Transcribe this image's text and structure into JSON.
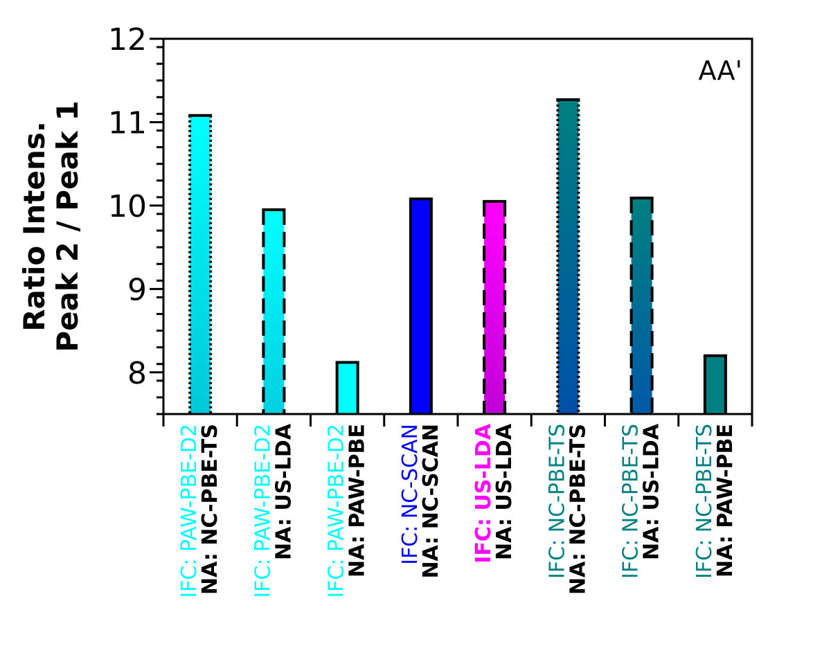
{
  "chart_data": {
    "type": "bar",
    "ylabel_line1": "Ratio Intens.",
    "ylabel_line2": "Peak 2 / Peak 1",
    "annotation": "AA'",
    "ylim": [
      7.5,
      12
    ],
    "yticks": [
      8,
      9,
      10,
      11,
      12
    ],
    "yticks_labels": [
      "8",
      "9",
      "10",
      "11",
      "12"
    ],
    "grid": false,
    "categories": [
      {
        "ifc": "IFC: PAW-PBE-D2",
        "ifc_prefix": "IFC: ",
        "ifc_name": "PAW-PBE-D2",
        "ifc_bold": false,
        "na": "NA: NC-PBE-TS",
        "value": 11.08,
        "ifc_color": "#00ffff",
        "fill_top": "#00ffff",
        "fill_bottom": "#00c8d8",
        "outline": "dotted"
      },
      {
        "ifc": "IFC: PAW-PBE-D2",
        "ifc_prefix": "IFC: ",
        "ifc_name": "PAW-PBE-D2",
        "ifc_bold": false,
        "na": "NA: US-LDA",
        "value": 9.95,
        "ifc_color": "#00ffff",
        "fill_top": "#00ffff",
        "fill_bottom": "#00d0e0",
        "outline": "dashed"
      },
      {
        "ifc": "IFC: PAW-PBE-D2",
        "ifc_prefix": "IFC: ",
        "ifc_name": "PAW-PBE-D2",
        "ifc_bold": false,
        "na": "NA: PAW-PBE",
        "value": 8.12,
        "ifc_color": "#00ffff",
        "fill_top": "#00ffff",
        "fill_bottom": "#00ffff",
        "outline": "solid"
      },
      {
        "ifc": "IFC: NC-SCAN",
        "ifc_prefix": "IFC: ",
        "ifc_name": "NC-SCAN",
        "ifc_bold": false,
        "na": "NA: NC-SCAN",
        "value": 10.08,
        "ifc_color": "#0000ff",
        "fill_top": "#0000ff",
        "fill_bottom": "#0000ff",
        "outline": "solid"
      },
      {
        "ifc": "IFC: US-LDA",
        "ifc_prefix": "IFC: ",
        "ifc_name": "US-LDA",
        "ifc_bold": true,
        "na": "NA: US-LDA",
        "value": 10.05,
        "ifc_color": "#ff00ff",
        "fill_top": "#ff00ff",
        "fill_bottom": "#c000d8",
        "outline": "dashed"
      },
      {
        "ifc": "IFC: NC-PBE-TS",
        "ifc_prefix": "IFC: ",
        "ifc_name": "NC-PBE-TS",
        "ifc_bold": false,
        "na": "NA: NC-PBE-TS",
        "value": 11.27,
        "ifc_color": "#008080",
        "fill_top": "#008080",
        "fill_bottom": "#0050a8",
        "outline": "dotted"
      },
      {
        "ifc": "IFC: NC-PBE-TS",
        "ifc_prefix": "IFC: ",
        "ifc_name": "NC-PBE-TS",
        "ifc_bold": false,
        "na": "NA: US-LDA",
        "value": 10.09,
        "ifc_color": "#008080",
        "fill_top": "#008080",
        "fill_bottom": "#005aa8",
        "outline": "dashed"
      },
      {
        "ifc": "IFC: NC-PBE-TS",
        "ifc_prefix": "IFC: ",
        "ifc_name": "NC-PBE-TS",
        "ifc_bold": false,
        "na": "NA: PAW-PBE",
        "value": 8.2,
        "ifc_color": "#008080",
        "fill_top": "#008080",
        "fill_bottom": "#008080",
        "outline": "solid"
      }
    ]
  }
}
